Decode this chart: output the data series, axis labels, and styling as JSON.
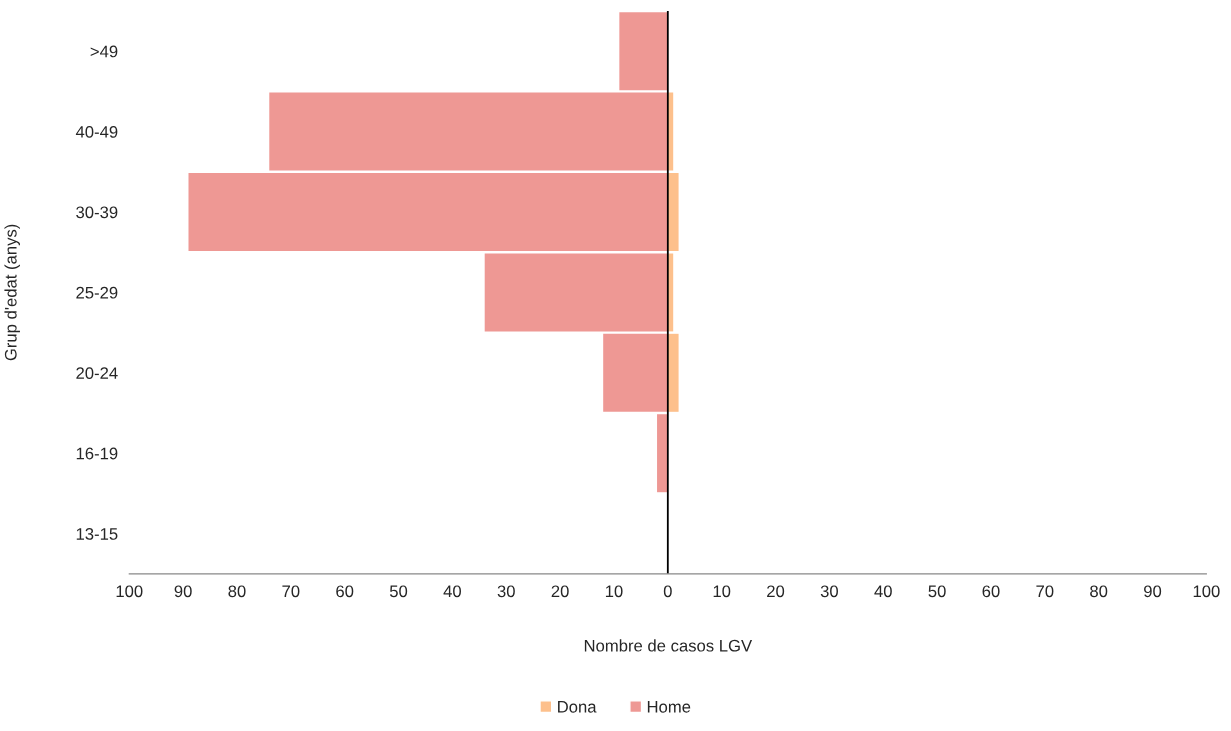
{
  "chart_data": {
    "type": "bar",
    "orientation": "horizontal",
    "categories": [
      ">49",
      "40-49",
      "30-39",
      "25-29",
      "20-24",
      "16-19",
      "13-15"
    ],
    "series": [
      {
        "name": "Dona",
        "color": "#fdc08c",
        "values": [
          0,
          1,
          2,
          1,
          2,
          0,
          0
        ]
      },
      {
        "name": "Home",
        "color": "#ee9894",
        "values": [
          -9,
          -74,
          -89,
          -34,
          -12,
          -2,
          0
        ]
      }
    ],
    "xlabel": "Nombre de casos LGV",
    "ylabel": "Grup d'edat (anys)",
    "xlim": [
      -100,
      100
    ],
    "xticks": [
      {
        "value": -100,
        "label": "100"
      },
      {
        "value": -90,
        "label": "90"
      },
      {
        "value": -80,
        "label": "80"
      },
      {
        "value": -70,
        "label": "70"
      },
      {
        "value": -60,
        "label": "60"
      },
      {
        "value": -50,
        "label": "50"
      },
      {
        "value": -40,
        "label": "40"
      },
      {
        "value": -30,
        "label": "30"
      },
      {
        "value": -20,
        "label": "20"
      },
      {
        "value": -10,
        "label": "10"
      },
      0,
      10,
      20,
      30,
      40,
      50,
      60,
      70,
      80,
      90,
      100
    ],
    "ref_lines": [
      {
        "axis": "x",
        "value": 0,
        "color": "#000000"
      }
    ],
    "stacked": true,
    "grid": false,
    "legend": "bottom"
  }
}
